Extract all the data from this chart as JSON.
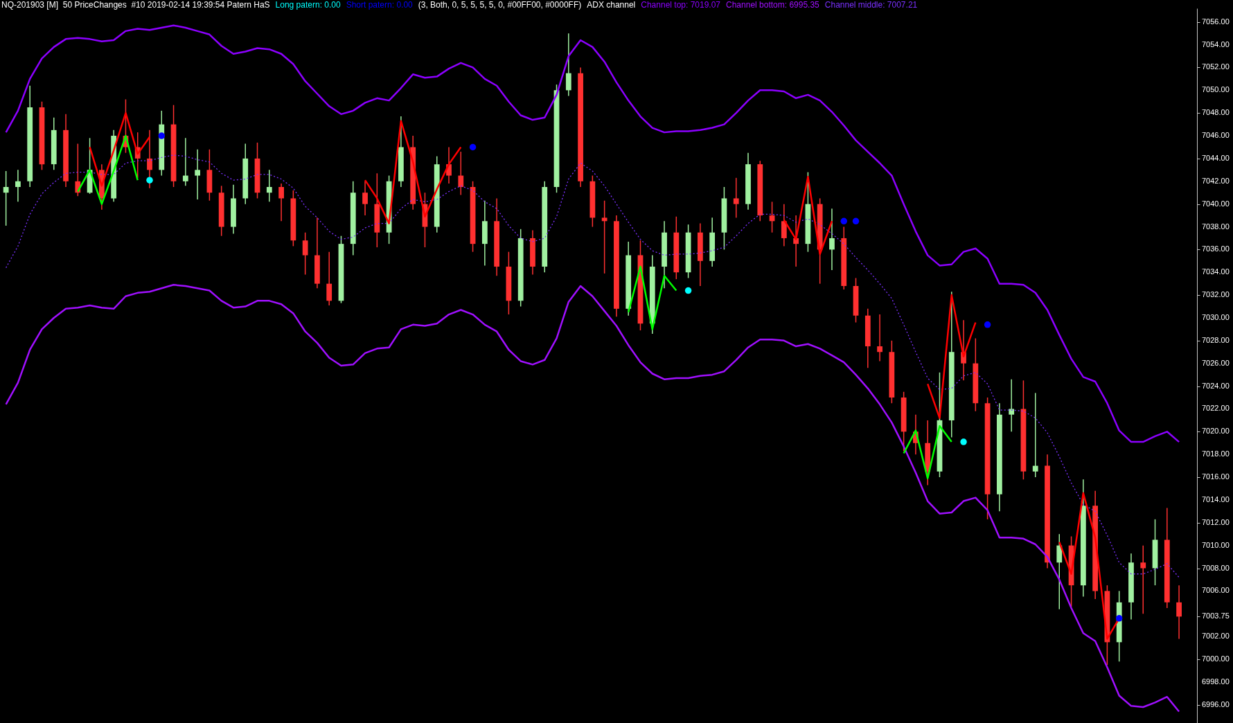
{
  "chart_data": {
    "type": "candlestick",
    "title": "NQ-201903 [M]  50 PriceChanges  #10 2019-02-14 19:39:54 Patern HaS",
    "categories": [
      null,
      null,
      null,
      null,
      null,
      null,
      null,
      null,
      null,
      null,
      null,
      null,
      null,
      null,
      null,
      null,
      null,
      null,
      null,
      null,
      null,
      null,
      null,
      null,
      null,
      null,
      null,
      null,
      null,
      null,
      null,
      null,
      null,
      null,
      null,
      null,
      null,
      null,
      null,
      null,
      null,
      null,
      null,
      null,
      null,
      null,
      null,
      null,
      null,
      null,
      null,
      null,
      null,
      null,
      null,
      null,
      null,
      null,
      null,
      null,
      null,
      null,
      null,
      null,
      null,
      null,
      null,
      null,
      null,
      null,
      null,
      null,
      null,
      null,
      null,
      null,
      null,
      null,
      null,
      null,
      null,
      null,
      null,
      null,
      null,
      null,
      null,
      null,
      null,
      null,
      null,
      null,
      null,
      null,
      null,
      null,
      null,
      null,
      null
    ],
    "ohlc": [
      [
        7041,
        7042.9,
        7038.1,
        7041.5
      ],
      [
        7041.5,
        7043,
        7040.2,
        7042
      ],
      [
        7042,
        7050.4,
        7041.5,
        7048.5
      ],
      [
        7048.5,
        7049,
        7043,
        7043.5
      ],
      [
        7043.5,
        7047.6,
        7043,
        7046.5
      ],
      [
        7046.5,
        7047.9,
        7041.5,
        7042
      ],
      [
        7042,
        7045.3,
        7040.7,
        7041
      ],
      [
        7041,
        7045.8,
        7040.9,
        7043
      ],
      [
        7043,
        7043.5,
        7039.5,
        7040.5
      ],
      [
        7040.5,
        7046.5,
        7040.2,
        7046
      ],
      [
        7046,
        7049.2,
        7044.5,
        7045
      ],
      [
        7045,
        7046.3,
        7042.3,
        7044
      ],
      [
        7044,
        7046.5,
        7041.4,
        7043
      ],
      [
        7043,
        7048.2,
        7042.5,
        7047
      ],
      [
        7047,
        7048.7,
        7041.5,
        7042
      ],
      [
        7042,
        7045.8,
        7041.6,
        7042.5
      ],
      [
        7042.5,
        7044.8,
        7040.4,
        7043
      ],
      [
        7043,
        7044.8,
        7040.3,
        7041
      ],
      [
        7041,
        7041.6,
        7037.2,
        7038
      ],
      [
        7038,
        7041.7,
        7037.4,
        7040.5
      ],
      [
        7040.5,
        7045.3,
        7040,
        7044
      ],
      [
        7044,
        7045.4,
        7040.5,
        7041
      ],
      [
        7041,
        7043,
        7040.2,
        7041.5
      ],
      [
        7041.5,
        7041.8,
        7038.5,
        7040.5
      ],
      [
        7040.5,
        7041.2,
        7036.3,
        7036.8
      ],
      [
        7036.8,
        7037.5,
        7033.8,
        7035.5
      ],
      [
        7035.5,
        7038.8,
        7032.6,
        7033
      ],
      [
        7033,
        7035.8,
        7031.1,
        7031.5
      ],
      [
        7031.5,
        7037.2,
        7031.3,
        7036.5
      ],
      [
        7036.5,
        7042,
        7035.5,
        7041
      ],
      [
        7041,
        7042,
        7039,
        7040
      ],
      [
        7040,
        7042.7,
        7036.2,
        7037.5
      ],
      [
        7037.5,
        7042.5,
        7036.5,
        7042
      ],
      [
        7042,
        7047.7,
        7041.5,
        7045
      ],
      [
        7045,
        7046,
        7039.5,
        7040
      ],
      [
        7040,
        7041,
        7036.2,
        7038
      ],
      [
        7038,
        7044.2,
        7037.5,
        7043.5
      ],
      [
        7043.5,
        7045,
        7041.8,
        7042.5
      ],
      [
        7042.5,
        7044.6,
        7040.8,
        7041.5
      ],
      [
        7041.5,
        7042,
        7035.8,
        7036.5
      ],
      [
        7036.5,
        7040.3,
        7034.6,
        7038.5
      ],
      [
        7038.5,
        7040.5,
        7033.7,
        7034.5
      ],
      [
        7034.5,
        7035.8,
        7030.3,
        7031.5
      ],
      [
        7031.5,
        7037.8,
        7031,
        7037
      ],
      [
        7037,
        7037.7,
        7033.8,
        7034.5
      ],
      [
        7034.5,
        7042,
        7034,
        7041.5
      ],
      [
        7041.5,
        7050.5,
        7041,
        7050
      ],
      [
        7050,
        7055,
        7049.5,
        7051.5
      ],
      [
        7051.5,
        7052,
        7041.5,
        7042
      ],
      [
        7042,
        7042.5,
        7038,
        7038.8
      ],
      [
        7038.8,
        7040.3,
        7033.9,
        7038.5
      ],
      [
        7038.5,
        7039,
        7030.1,
        7030.8
      ],
      [
        7030.8,
        7036.7,
        7030.2,
        7035.5
      ],
      [
        7035.5,
        7036.8,
        7028.9,
        7029.5
      ],
      [
        7029.5,
        7035.5,
        7028.6,
        7034.5
      ],
      [
        7034.5,
        7038.5,
        7032.6,
        7037.5
      ],
      [
        7037.5,
        7038.9,
        7033.4,
        7034
      ],
      [
        7034,
        7038.2,
        7033.5,
        7037.5
      ],
      [
        7037.5,
        7038.3,
        7032.8,
        7035
      ],
      [
        7035,
        7038.8,
        7034.5,
        7037.5
      ],
      [
        7037.5,
        7041.5,
        7036,
        7040.5
      ],
      [
        7040.5,
        7042.3,
        7038.8,
        7040
      ],
      [
        7040,
        7044.5,
        7039.5,
        7043.5
      ],
      [
        7043.5,
        7043.8,
        7038.5,
        7039
      ],
      [
        7039,
        7040.2,
        7037.5,
        7038.5
      ],
      [
        7038.5,
        7040,
        7036.3,
        7037
      ],
      [
        7037,
        7039,
        7034.5,
        7036.5
      ],
      [
        7036.5,
        7042.8,
        7035.8,
        7040
      ],
      [
        7040,
        7040.5,
        7033,
        7036
      ],
      [
        7036,
        7039.6,
        7034.2,
        7037
      ],
      [
        7037,
        7038,
        7032.5,
        7032.8
      ],
      [
        7032.8,
        7033.5,
        7029.6,
        7030.2
      ],
      [
        7030.2,
        7030.8,
        7025.6,
        7027.5
      ],
      [
        7027.5,
        7030.3,
        7026.2,
        7027
      ],
      [
        7027,
        7028,
        7022.5,
        7023
      ],
      [
        7023,
        7023.5,
        7018.3,
        7020
      ],
      [
        7020,
        7021.5,
        7018,
        7019
      ],
      [
        7019,
        7021,
        7015.3,
        7016.5
      ],
      [
        7016.5,
        7025.2,
        7016,
        7021
      ],
      [
        7021,
        7032.3,
        7019.5,
        7027
      ],
      [
        7027,
        7029.8,
        7024.5,
        7026
      ],
      [
        7026,
        7028.2,
        7021.8,
        7022.5
      ],
      [
        7022.5,
        7023,
        7012.3,
        7014.5
      ],
      [
        7014.5,
        7022.5,
        7013,
        7021.5
      ],
      [
        7021.5,
        7024.6,
        7020,
        7022
      ],
      [
        7022,
        7024.5,
        7015.8,
        7016.5
      ],
      [
        7016.5,
        7023.4,
        7016,
        7017
      ],
      [
        7017,
        7018,
        7008,
        7008.5
      ],
      [
        7008.5,
        7011,
        7004.4,
        7010
      ],
      [
        7010,
        7010.8,
        7004.6,
        7006.5
      ],
      [
        7006.5,
        7015.8,
        7005.5,
        7013.5
      ],
      [
        7013.5,
        7014.8,
        7005.3,
        7006
      ],
      [
        7006,
        7006.5,
        6999.5,
        7001.5
      ],
      [
        7001.5,
        7006,
        6999.8,
        7005
      ],
      [
        7005,
        7009.3,
        7003.5,
        7008.5
      ],
      [
        7008.5,
        7010,
        7004,
        7008
      ],
      [
        7008,
        7012.3,
        7006.5,
        7010.5
      ],
      [
        7010.5,
        7013.3,
        7004.5,
        7005
      ],
      [
        7005,
        7006.5,
        7001.8,
        7003.75
      ]
    ],
    "colors": [
      "#a0f0a0",
      "#a0f0a0",
      "#a0f0a0",
      "#ff3030",
      "#a0f0a0",
      "#ff3030",
      "#ff3030",
      "#a0f0a0",
      "#ff3030",
      "#a0f0a0",
      "#ff3030",
      "#ff3030",
      "#ff3030",
      "#a0f0a0",
      "#ff3030",
      "#a0f0a0",
      "#a0f0a0",
      "#ff3030",
      "#ff3030",
      "#a0f0a0",
      "#a0f0a0",
      "#ff3030",
      "#a0f0a0",
      "#ff3030",
      "#ff3030",
      "#ff3030",
      "#ff3030",
      "#ff3030",
      "#a0f0a0",
      "#a0f0a0",
      "#ff3030",
      "#ff3030",
      "#a0f0a0",
      "#a0f0a0",
      "#ff3030",
      "#ff3030",
      "#a0f0a0",
      "#ff3030",
      "#ff3030",
      "#ff3030",
      "#a0f0a0",
      "#ff3030",
      "#ff3030",
      "#a0f0a0",
      "#ff3030",
      "#a0f0a0",
      "#a0f0a0",
      "#a0f0a0",
      "#ff3030",
      "#ff3030",
      "#ff3030",
      "#ff3030",
      "#a0f0a0",
      "#ff3030",
      "#a0f0a0",
      "#a0f0a0",
      "#ff3030",
      "#a0f0a0",
      "#ff3030",
      "#a0f0a0",
      "#a0f0a0",
      "#ff3030",
      "#a0f0a0",
      "#ff3030",
      "#ff3030",
      "#ff3030",
      "#ff3030",
      "#a0f0a0",
      "#ff3030",
      "#a0f0a0",
      "#ff3030",
      "#ff3030",
      "#ff3030",
      "#ff3030",
      "#ff3030",
      "#ff3030",
      "#ff3030",
      "#ff3030",
      "#a0f0a0",
      "#a0f0a0",
      "#ff3030",
      "#ff3030",
      "#ff3030",
      "#a0f0a0",
      "#a0f0a0",
      "#ff3030",
      "#a0f0a0",
      "#ff3030",
      "#a0f0a0",
      "#ff3030",
      "#a0f0a0",
      "#ff3030",
      "#ff3030",
      "#a0f0a0",
      "#a0f0a0",
      "#ff3030",
      "#a0f0a0",
      "#ff3030",
      "#ff3030"
    ],
    "series": [
      {
        "name": "Channel top: 7019.07",
        "type": "line",
        "color": "#8c00ff",
        "values": [
          7046.3,
          7048.2,
          7051.0,
          7052.8,
          7053.8,
          7054.5,
          7054.6,
          7054.5,
          7054.3,
          7054.4,
          7055.2,
          7055.4,
          7055.3,
          7055.5,
          7055.7,
          7055.5,
          7055.2,
          7054.9,
          7053.9,
          7053.2,
          7053.4,
          7053.7,
          7053.6,
          7053.2,
          7052.3,
          7050.8,
          7049.7,
          7048.6,
          7047.9,
          7048.2,
          7048.9,
          7049.3,
          7049.1,
          7050.2,
          7051.4,
          7051.1,
          7051.2,
          7051.9,
          7052.4,
          7052.0,
          7051.0,
          7050.4,
          7049.0,
          7047.8,
          7047.4,
          7047.6,
          7049.6,
          7053.0,
          7054.4,
          7053.8,
          7052.5,
          7050.7,
          7049.1,
          7047.7,
          7046.7,
          7046.3,
          7046.4,
          7046.4,
          7046.5,
          7046.7,
          7047.0,
          7048.0,
          7049.1,
          7050.0,
          7050.0,
          7049.9,
          7049.3,
          7049.6,
          7049.1,
          7048.1,
          7046.9,
          7045.6,
          7044.6,
          7043.6,
          7042.5,
          7040.0,
          7037.6,
          7035.5,
          7034.6,
          7034.7,
          7035.8,
          7036.1,
          7035.2,
          7033.0,
          7033.0,
          7032.9,
          7032.2,
          7030.7,
          7028.5,
          7026.4,
          7024.8,
          7024.4,
          7022.5,
          7020.1,
          7019.1,
          7019.1,
          7019.6,
          7020.0,
          7019.1
        ]
      },
      {
        "name": "Channel bottom: 6995.35",
        "type": "line",
        "color": "#a010ff",
        "values": [
          7022.4,
          7024.3,
          7027.2,
          7029.0,
          7030.0,
          7030.8,
          7030.9,
          7031.1,
          7030.9,
          7030.8,
          7031.9,
          7032.2,
          7032.3,
          7032.6,
          7032.9,
          7032.8,
          7032.6,
          7032.4,
          7031.5,
          7030.9,
          7031.0,
          7031.5,
          7031.5,
          7031.2,
          7030.4,
          7028.8,
          7027.8,
          7026.5,
          7025.8,
          7025.9,
          7026.9,
          7027.3,
          7027.4,
          7029.0,
          7029.4,
          7029.3,
          7029.5,
          7030.3,
          7030.7,
          7030.3,
          7029.4,
          7028.8,
          7027.2,
          7026.2,
          7025.9,
          7026.3,
          7028.2,
          7031.4,
          7032.8,
          7031.9,
          7030.6,
          7029.3,
          7027.6,
          7026.1,
          7025.1,
          7024.6,
          7024.7,
          7024.7,
          7024.9,
          7025.0,
          7025.3,
          7026.3,
          7027.4,
          7028.1,
          7028.1,
          7028.0,
          7027.5,
          7027.7,
          7027.3,
          7026.7,
          7026.1,
          7025.0,
          7023.8,
          7022.4,
          7020.8,
          7018.7,
          7016.4,
          7013.9,
          7012.8,
          7012.9,
          7013.9,
          7014.2,
          7013.1,
          7010.7,
          7010.7,
          7010.6,
          7010.1,
          7009.0,
          7007.0,
          7004.5,
          7002.3,
          7001.6,
          6999.3,
          6996.8,
          6995.9,
          6995.8,
          6996.2,
          6996.7,
          6995.4
        ]
      },
      {
        "name": "Channel middle: 7007.21",
        "type": "line",
        "color": "#7a30ff",
        "line_style": "dotted",
        "values": [
          7034.4,
          7036.3,
          7039.1,
          7040.9,
          7041.9,
          7042.7,
          7042.8,
          7042.8,
          7042.6,
          7042.6,
          7043.6,
          7043.8,
          7043.8,
          7044.1,
          7044.3,
          7044.2,
          7043.9,
          7043.7,
          7042.7,
          7042.1,
          7042.2,
          7042.6,
          7042.6,
          7042.2,
          7041.4,
          7039.8,
          7038.8,
          7037.6,
          7036.9,
          7037.1,
          7037.9,
          7038.3,
          7038.3,
          7039.6,
          7040.4,
          7040.2,
          7040.4,
          7041.1,
          7041.6,
          7041.2,
          7040.2,
          7039.6,
          7038.1,
          7037.0,
          7036.7,
          7037.0,
          7038.9,
          7042.2,
          7043.6,
          7042.9,
          7041.6,
          7040.0,
          7038.4,
          7036.9,
          7035.9,
          7035.5,
          7035.6,
          7035.6,
          7035.7,
          7035.9,
          7036.2,
          7037.2,
          7038.3,
          7039.1,
          7039.1,
          7039.0,
          7038.4,
          7038.7,
          7038.2,
          7037.4,
          7036.5,
          7035.3,
          7034.2,
          7033.0,
          7031.7,
          7029.4,
          7027.0,
          7024.7,
          7023.7,
          7023.8,
          7024.9,
          7025.2,
          7024.2,
          7021.9,
          7021.9,
          7021.8,
          7021.2,
          7019.9,
          7017.8,
          7015.5,
          7013.6,
          7013.0,
          7010.9,
          7008.5,
          7007.5,
          7007.5,
          7007.9,
          7008.4,
          7007.2
        ]
      },
      {
        "type": "line",
        "color": "#ff0000",
        "values": [
          null,
          null,
          null,
          null,
          null,
          null,
          null,
          7045.0,
          7041.6,
          7044.7,
          7048.0,
          7044.4,
          7045.9,
          null,
          null,
          null,
          null,
          null,
          null,
          null,
          null,
          null,
          null,
          null,
          null,
          null,
          null,
          null,
          null,
          null,
          7042.1,
          7040.5,
          7038.3,
          7047.3,
          7043.7,
          7038.9,
          7041.3,
          7043.5,
          7045.0,
          null,
          null,
          null,
          null,
          null,
          null,
          null,
          null,
          null,
          null,
          null,
          null,
          null,
          null,
          null,
          null,
          null,
          null,
          null,
          null,
          null,
          null,
          null,
          null,
          null,
          null,
          7038.6,
          7036.9,
          7042.4,
          7035.6,
          7038.5,
          null,
          null,
          null,
          null,
          null,
          null,
          null,
          7024.2,
          7021.2,
          7032.0,
          7026.6,
          7029.6,
          null,
          null,
          null,
          null,
          null,
          null,
          7010.3,
          7007.5,
          7014.6,
          7010.7,
          7001.8,
          7003.6,
          null,
          null,
          null,
          null,
          null
        ]
      },
      {
        "type": "line",
        "color": "#00ff00",
        "values": [
          null,
          null,
          null,
          null,
          null,
          null,
          7041.1,
          7043.0,
          7040.0,
          7042.9,
          7046.0,
          7042.1,
          null,
          null,
          null,
          null,
          null,
          null,
          null,
          null,
          null,
          null,
          null,
          null,
          null,
          null,
          null,
          null,
          null,
          null,
          null,
          null,
          null,
          null,
          null,
          null,
          null,
          null,
          null,
          null,
          null,
          null,
          null,
          null,
          null,
          null,
          null,
          null,
          null,
          null,
          null,
          null,
          7030.5,
          7034.5,
          7029.0,
          7033.7,
          7032.4,
          null,
          null,
          null,
          null,
          null,
          null,
          null,
          null,
          null,
          null,
          null,
          null,
          null,
          null,
          null,
          null,
          null,
          null,
          7018.1,
          7020.1,
          7015.9,
          7020.5,
          7019.1,
          null,
          null,
          null,
          null,
          null,
          null,
          null,
          null,
          null,
          null,
          null,
          null,
          null,
          null,
          null,
          null,
          null,
          null,
          null
        ]
      },
      {
        "name": "Long patern: 0.00",
        "type": "scatter",
        "color": "#00ffff",
        "marker": "circle",
        "values": [
          null,
          null,
          null,
          null,
          null,
          null,
          null,
          null,
          null,
          null,
          null,
          null,
          7042.1,
          null,
          null,
          null,
          null,
          null,
          null,
          null,
          null,
          null,
          null,
          null,
          null,
          null,
          null,
          null,
          null,
          null,
          null,
          null,
          null,
          null,
          null,
          null,
          null,
          null,
          null,
          null,
          null,
          null,
          null,
          null,
          null,
          null,
          null,
          null,
          null,
          null,
          null,
          null,
          null,
          null,
          null,
          null,
          null,
          7032.4,
          null,
          null,
          null,
          null,
          null,
          null,
          null,
          null,
          null,
          null,
          null,
          null,
          null,
          null,
          null,
          null,
          null,
          null,
          null,
          null,
          null,
          null,
          7019.1,
          null,
          null,
          null,
          null,
          null,
          null,
          null,
          null,
          null,
          null,
          null,
          null,
          null,
          null,
          null,
          null,
          null,
          null
        ]
      },
      {
        "name": "Short patern: 0.00",
        "type": "scatter",
        "color": "#0000ff",
        "marker": "circle",
        "values": [
          null,
          null,
          null,
          null,
          null,
          null,
          null,
          null,
          null,
          null,
          null,
          null,
          null,
          7046.0,
          null,
          null,
          null,
          null,
          null,
          null,
          null,
          null,
          null,
          null,
          null,
          null,
          null,
          null,
          null,
          null,
          null,
          null,
          null,
          null,
          null,
          null,
          null,
          null,
          null,
          7045.0,
          null,
          null,
          null,
          null,
          null,
          null,
          null,
          null,
          null,
          null,
          null,
          null,
          null,
          null,
          null,
          null,
          null,
          null,
          null,
          null,
          null,
          null,
          null,
          null,
          null,
          null,
          null,
          null,
          null,
          null,
          7038.5,
          7038.5,
          null,
          null,
          null,
          null,
          null,
          null,
          null,
          null,
          null,
          null,
          7029.4,
          null,
          null,
          null,
          null,
          null,
          null,
          null,
          null,
          null,
          null,
          7003.6,
          null,
          null,
          null,
          null,
          null
        ]
      }
    ],
    "ylim": [
      6994.4,
      7057.2
    ],
    "yticks": [
      {
        "value": 6996,
        "label": "6996.00"
      },
      {
        "value": 6998,
        "label": "6998.00"
      },
      {
        "value": 7000,
        "label": "7000.00"
      },
      {
        "value": 7002,
        "label": "7002.00"
      },
      {
        "value": 7003.75,
        "label": "7003.75"
      },
      {
        "value": 7006,
        "label": "7006.00"
      },
      {
        "value": 7008,
        "label": "7008.00"
      },
      {
        "value": 7010,
        "label": "7010.00"
      },
      {
        "value": 7012,
        "label": "7012.00"
      },
      {
        "value": 7014,
        "label": "7014.00"
      },
      {
        "value": 7016,
        "label": "7016.00"
      },
      {
        "value": 7018,
        "label": "7018.00"
      },
      {
        "value": 7020,
        "label": "7020.00"
      },
      {
        "value": 7022,
        "label": "7022.00"
      },
      {
        "value": 7024,
        "label": "7024.00"
      },
      {
        "value": 7026,
        "label": "7026.00"
      },
      {
        "value": 7028,
        "label": "7028.00"
      },
      {
        "value": 7030,
        "label": "7030.00"
      },
      {
        "value": 7032,
        "label": "7032.00"
      },
      {
        "value": 7034,
        "label": "7034.00"
      },
      {
        "value": 7036,
        "label": "7036.00"
      },
      {
        "value": 7038,
        "label": "7038.00"
      },
      {
        "value": 7040,
        "label": "7040.00"
      },
      {
        "value": 7042,
        "label": "7042.00"
      },
      {
        "value": 7044,
        "label": "7044.00"
      },
      {
        "value": 7046,
        "label": "7046.00"
      },
      {
        "value": 7048,
        "label": "7048.00"
      },
      {
        "value": 7050,
        "label": "7050.00"
      },
      {
        "value": 7052,
        "label": "7052.00"
      },
      {
        "value": 7054,
        "label": "7054.00"
      },
      {
        "value": 7056,
        "label": "7056.00"
      }
    ],
    "legend": "top left",
    "annotations": [
      "(3, Both, 0, 5, 5, 5, 5, 0, #00FF00, #0000FF)",
      "ADX channel"
    ]
  }
}
